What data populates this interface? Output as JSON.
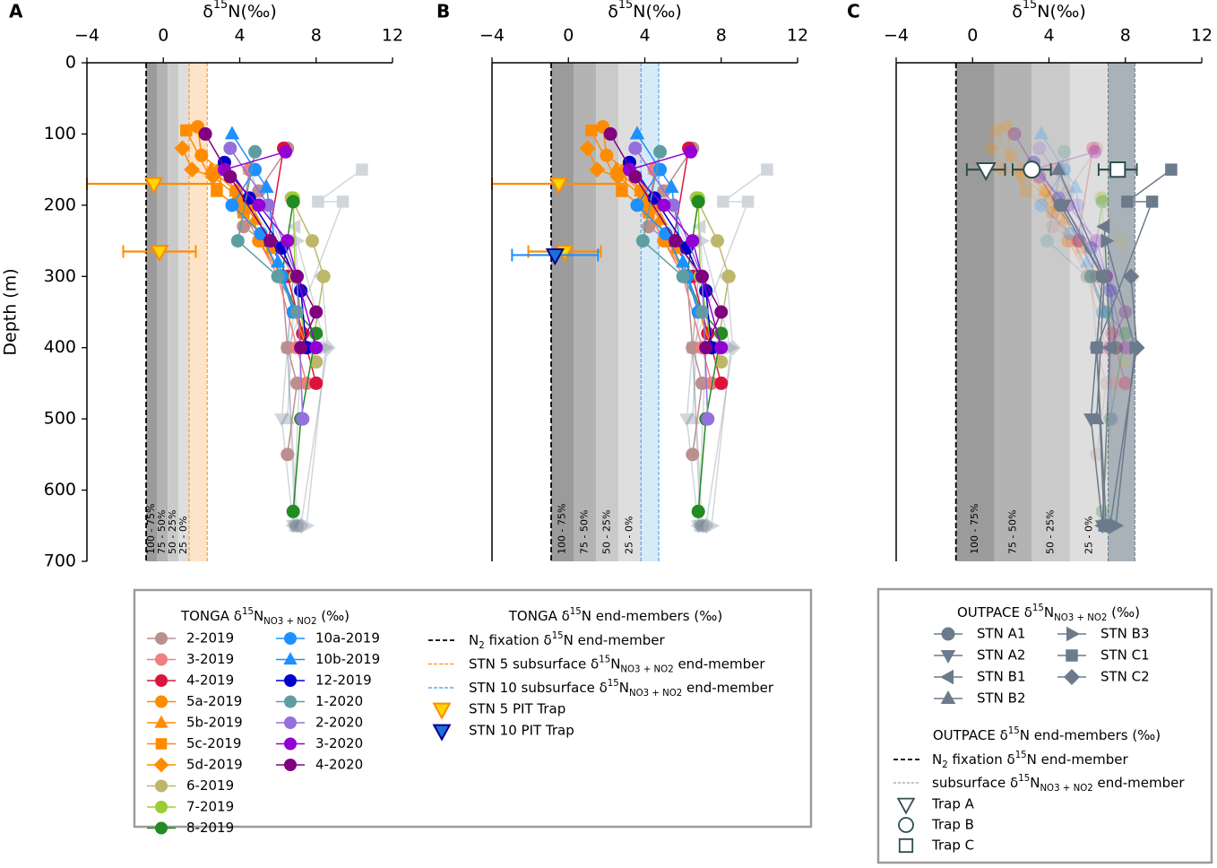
{
  "chart_data": {
    "type": "scatter",
    "xlabel": [
      {
        "text": "δ"
      },
      {
        "text": "15",
        "pos": "sup"
      },
      {
        "text": "N(‰)"
      }
    ],
    "ylabel": "Depth (m)",
    "xlim": [
      -4,
      12
    ],
    "xticks": [
      {
        "value": -4,
        "label": "−4"
      },
      0,
      4,
      8,
      12
    ],
    "ylim": [
      0,
      700
    ],
    "yticks": [
      0,
      100,
      200,
      300,
      400,
      500,
      600,
      700
    ],
    "invert_y": true,
    "band_labels": [
      "100 - 75%",
      "75 - 50%",
      "50 - 25%",
      "25 - 0%"
    ],
    "band_colors": [
      "#9b9b9b",
      "#b3b3b3",
      "#cacaca",
      "#dedede"
    ],
    "end_member_color": "#000000",
    "panels": [
      {
        "label": "A",
        "end_member": -0.9,
        "bands": [
          [
            -0.9,
            -0.34
          ],
          [
            -0.34,
            0.23
          ],
          [
            0.23,
            0.79
          ],
          [
            0.79,
            1.35
          ]
        ],
        "subsurface": {
          "from": 1.35,
          "to": 2.3,
          "fill": "#fde4c8",
          "edge": "#ff8c1a"
        },
        "tonga": "full",
        "outpace": "faded"
      },
      {
        "label": "B",
        "end_member": -0.9,
        "bands": [
          [
            -0.9,
            0.27
          ],
          [
            0.27,
            1.45
          ],
          [
            1.45,
            2.62
          ],
          [
            2.62,
            3.8
          ]
        ],
        "subsurface": {
          "from": 3.8,
          "to": 4.73,
          "fill": "#d6eaf8",
          "edge": "#3399ff"
        },
        "tonga": "full",
        "outpace": "faded"
      },
      {
        "label": "C",
        "end_member": -0.87,
        "bands": [
          [
            -0.87,
            1.15
          ],
          [
            1.15,
            3.1
          ],
          [
            3.1,
            5.1
          ],
          [
            5.1,
            7.1
          ]
        ],
        "subsurface": {
          "from": 7.1,
          "to": 8.5,
          "fill": "#a9b1b9",
          "edge": "#6b7b8c"
        },
        "tonga": "faded",
        "outpace": "full"
      }
    ],
    "tonga_series": [
      {
        "name": "2-2019",
        "color": "#bc8f8f",
        "marker": "circle",
        "x": [
          6.5,
          5.0,
          4.2,
          5.2,
          6.2,
          6.5,
          7.0,
          6.5
        ],
        "depth": [
          120,
          180,
          230,
          250,
          300,
          400,
          450,
          550
        ]
      },
      {
        "name": "3-2019",
        "color": "#f08080",
        "marker": "circle",
        "x": [
          4.5,
          4.2,
          5.0,
          6.0,
          7.0,
          7.5
        ],
        "depth": [
          150,
          210,
          250,
          300,
          400,
          450
        ]
      },
      {
        "name": "4-2019",
        "color": "#dc143c",
        "marker": "circle",
        "x": [
          6.3,
          5.5,
          6.5,
          7.3,
          8.0
        ],
        "depth": [
          120,
          250,
          300,
          380,
          450
        ]
      },
      {
        "name": "5a-2019",
        "color": "#ff8c00",
        "marker": "circle",
        "x": [
          1.8,
          2.0,
          3.0,
          3.8,
          4.6,
          5.0,
          6.2,
          7.5
        ],
        "depth": [
          90,
          130,
          150,
          180,
          200,
          250,
          300,
          400
        ]
      },
      {
        "name": "5b-2019",
        "color": "#ff8c00",
        "marker": "tri-up",
        "x": [
          2.5,
          3.8,
          4.8
        ],
        "depth": [
          150,
          180,
          220
        ]
      },
      {
        "name": "5c-2019",
        "color": "#ff8c00",
        "marker": "square",
        "x": [
          1.2,
          2.8,
          4.2,
          5.7
        ],
        "depth": [
          95,
          180,
          210,
          260
        ]
      },
      {
        "name": "5d-2019",
        "color": "#ff8c00",
        "marker": "diamond",
        "x": [
          1.0,
          1.5,
          2.6,
          4.0,
          4.3
        ],
        "depth": [
          120,
          150,
          160,
          190,
          200
        ]
      },
      {
        "name": "6-2019",
        "color": "#bdb76b",
        "marker": "circle",
        "x": [
          6.7,
          7.8,
          8.4,
          7.8,
          8.0
        ],
        "depth": [
          190,
          250,
          300,
          400,
          420
        ]
      },
      {
        "name": "7-2019",
        "color": "#9acd32",
        "marker": "circle",
        "x": [
          6.8,
          6.9,
          7.5
        ],
        "depth": [
          190,
          300,
          400
        ]
      },
      {
        "name": "8-2019",
        "color": "#228b22",
        "marker": "circle",
        "x": [
          6.8,
          6.2,
          7.0,
          8.0,
          7.2,
          6.8
        ],
        "depth": [
          195,
          300,
          350,
          380,
          500,
          630
        ]
      },
      {
        "name": "10a-2019",
        "color": "#1e90ff",
        "marker": "circle",
        "x": [
          4.8,
          3.6,
          5.1,
          6.2,
          6.8
        ],
        "depth": [
          150,
          200,
          240,
          300,
          350
        ]
      },
      {
        "name": "10b-2019",
        "color": "#1e90ff",
        "marker": "tri-up",
        "x": [
          3.6,
          5.4,
          6.0,
          6.9
        ],
        "depth": [
          100,
          175,
          280,
          350
        ]
      },
      {
        "name": "12-2019",
        "color": "#0000cd",
        "marker": "circle",
        "x": [
          3.2,
          4.5,
          6.2,
          7.2,
          7.5
        ],
        "depth": [
          140,
          190,
          260,
          320,
          400
        ]
      },
      {
        "name": "1-2020",
        "color": "#5f9ea0",
        "marker": "circle",
        "x": [
          4.8,
          3.9,
          6.0,
          7.0
        ],
        "depth": [
          125,
          250,
          300,
          350
        ]
      },
      {
        "name": "2-2020",
        "color": "#9370db",
        "marker": "circle",
        "x": [
          3.5,
          5.5,
          7.0,
          7.3
        ],
        "depth": [
          120,
          200,
          300,
          500
        ]
      },
      {
        "name": "3-2020",
        "color": "#9400d3",
        "marker": "circle",
        "x": [
          6.4,
          3.2,
          5.0,
          6.5,
          7.0,
          8.0
        ],
        "depth": [
          125,
          150,
          200,
          250,
          300,
          400
        ]
      },
      {
        "name": "4-2020",
        "color": "#800080",
        "marker": "circle",
        "x": [
          2.2,
          3.5,
          5.6,
          7.0,
          8.0,
          7.2
        ],
        "depth": [
          100,
          160,
          250,
          300,
          350,
          400
        ]
      }
    ],
    "outpace_color": "#6b7b8c",
    "outpace_series": [
      {
        "name": "STN A1",
        "marker": "circle",
        "x": [
          4.6,
          6.8,
          6.5,
          7.0
        ],
        "depth": [
          200,
          300,
          400,
          650
        ]
      },
      {
        "name": "STN A2",
        "marker": "tri-down",
        "x": [
          4.8,
          6.8,
          6.2,
          6.8
        ],
        "depth": [
          200,
          300,
          500,
          650
        ]
      },
      {
        "name": "STN B1",
        "marker": "tri-left",
        "x": [
          6.9,
          7.2,
          6.8
        ],
        "depth": [
          230,
          400,
          650
        ]
      },
      {
        "name": "STN B2",
        "marker": "tri-up",
        "x": [
          4.5,
          6.9,
          6.5
        ],
        "depth": [
          150,
          300,
          500
        ]
      },
      {
        "name": "STN B3",
        "marker": "tri-right",
        "x": [
          7.0,
          8.5,
          7.5
        ],
        "depth": [
          250,
          400,
          650
        ]
      },
      {
        "name": "STN C1",
        "marker": "square",
        "x": [
          10.4,
          8.1,
          9.4,
          6.5,
          6.9
        ],
        "depth": [
          150,
          195,
          195,
          400,
          650
        ]
      },
      {
        "name": "STN C2",
        "marker": "diamond",
        "x": [
          8.3,
          8.6,
          7.2
        ],
        "depth": [
          300,
          400,
          650
        ]
      }
    ],
    "tonga_traps": [
      {
        "name": "STN 5 PIT Trap",
        "fill": "#ffd700",
        "edge": "#ff8c00",
        "marker": "tri-down",
        "x": [
          -0.5,
          -0.2
        ],
        "depth": [
          170,
          265
        ],
        "err": [
          3.5,
          1.9
        ],
        "panels": [
          0,
          1
        ]
      },
      {
        "name": "STN 10 PIT Trap",
        "fill": "#1e6fd9",
        "edge": "#00008b",
        "marker": "tri-down",
        "x": [
          -0.7
        ],
        "depth": [
          270
        ],
        "err": [
          2.25
        ],
        "panels": [
          1
        ]
      }
    ],
    "outpace_traps": {
      "edge": "#2f4f4f",
      "panel": 2,
      "items": [
        {
          "name": "Trap A",
          "marker": "tri-down",
          "x": 0.7,
          "depth": 150,
          "err": 1.0
        },
        {
          "name": "Trap B",
          "marker": "circle",
          "x": 3.1,
          "depth": 150,
          "err": 1.0
        },
        {
          "name": "Trap C",
          "marker": "square",
          "x": 7.6,
          "depth": 150,
          "err": 1.0
        }
      ]
    },
    "tonga_legend": {
      "title": [
        {
          "text": "TONGA δ"
        },
        {
          "text": "15",
          "pos": "sup"
        },
        {
          "text": "N"
        },
        {
          "text": "NO3 + NO2",
          "pos": "sub"
        },
        {
          "text": " (‰)"
        }
      ],
      "end_title": [
        {
          "text": "TONGA δ"
        },
        {
          "text": "15",
          "pos": "sup"
        },
        {
          "text": "N end-members (‰)"
        }
      ],
      "end_items": [
        {
          "label": [
            {
              "text": "N"
            },
            {
              "text": "2",
              "pos": "sub"
            },
            {
              "text": " fixation δ"
            },
            {
              "text": "15",
              "pos": "sup"
            },
            {
              "text": "N end-member"
            }
          ]
        },
        {
          "label": [
            {
              "text": "STN 5 subsurface δ"
            },
            {
              "text": "15",
              "pos": "sup"
            },
            {
              "text": "N"
            },
            {
              "text": "NO3 + NO2",
              "pos": "sub"
            },
            {
              "text": " end-member"
            }
          ]
        },
        {
          "label": [
            {
              "text": "STN 10 subsurface δ"
            },
            {
              "text": "15",
              "pos": "sup"
            },
            {
              "text": "N"
            },
            {
              "text": "NO3 + NO2",
              "pos": "sub"
            },
            {
              "text": " end-member"
            }
          ]
        }
      ]
    },
    "outpace_legend": {
      "title": [
        {
          "text": "OUTPACE δ"
        },
        {
          "text": "15",
          "pos": "sup"
        },
        {
          "text": "N"
        },
        {
          "text": "NO3 + NO2",
          "pos": "sub"
        },
        {
          "text": " (‰)"
        }
      ],
      "end_title": [
        {
          "text": "OUTPACE δ"
        },
        {
          "text": "15",
          "pos": "sup"
        },
        {
          "text": "N end-members (‰)"
        }
      ],
      "end_items": [
        {
          "label": [
            {
              "text": "N"
            },
            {
              "text": "2",
              "pos": "sub"
            },
            {
              "text": " fixation δ"
            },
            {
              "text": "15",
              "pos": "sup"
            },
            {
              "text": "N end-member"
            }
          ]
        },
        {
          "label": [
            {
              "text": "subsurface δ"
            },
            {
              "text": "15",
              "pos": "sup"
            },
            {
              "text": "N"
            },
            {
              "text": "NO3 + NO2",
              "pos": "sub"
            },
            {
              "text": " end-member"
            }
          ]
        }
      ]
    }
  }
}
